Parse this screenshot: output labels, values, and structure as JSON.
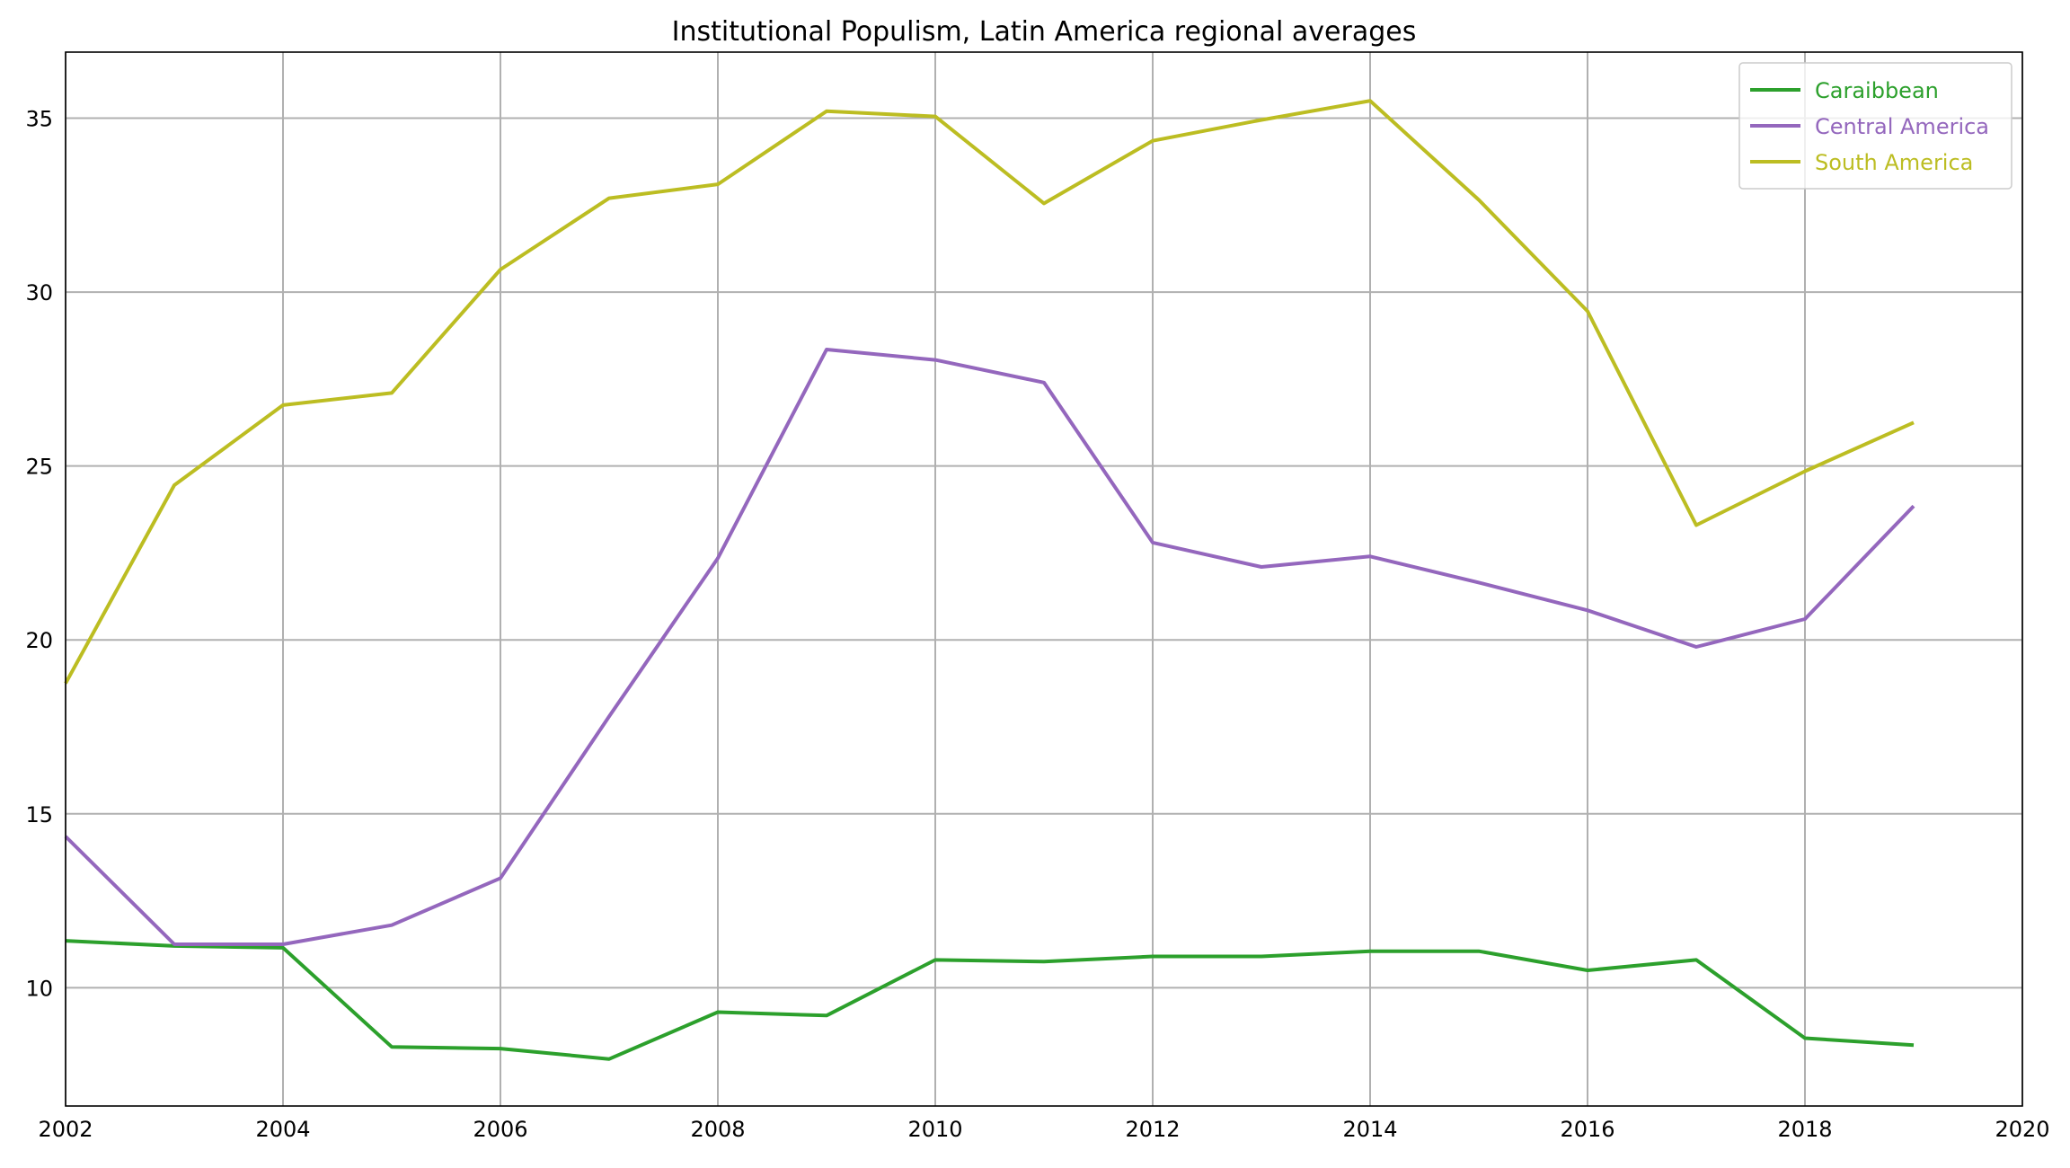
{
  "chart_data": {
    "type": "line",
    "title": "Institutional Populism, Latin America regional averages",
    "xlabel": "",
    "ylabel": "",
    "xlim": [
      2002,
      2020
    ],
    "ylim": [
      6.6,
      36.9
    ],
    "x_ticks": [
      2002,
      2004,
      2006,
      2008,
      2010,
      2012,
      2014,
      2016,
      2018,
      2020
    ],
    "y_ticks": [
      10,
      15,
      20,
      25,
      30,
      35
    ],
    "grid": true,
    "legend_position": "top-right",
    "x": [
      2002,
      2003,
      2004,
      2005,
      2006,
      2007,
      2008,
      2009,
      2010,
      2011,
      2012,
      2013,
      2014,
      2015,
      2016,
      2017,
      2018,
      2019
    ],
    "series": [
      {
        "name": "Caraibbean",
        "color": "#2ca02c",
        "values": [
          11.35,
          11.2,
          11.15,
          8.3,
          8.25,
          7.95,
          9.3,
          9.2,
          10.8,
          10.75,
          10.9,
          10.9,
          11.05,
          11.05,
          10.5,
          10.8,
          8.55,
          8.35
        ]
      },
      {
        "name": "Central America",
        "color": "#9467bd",
        "values": [
          14.35,
          11.25,
          11.25,
          11.8,
          13.15,
          17.8,
          22.35,
          28.35,
          28.05,
          27.4,
          22.8,
          22.1,
          22.4,
          21.65,
          20.85,
          19.8,
          20.6,
          23.85
        ]
      },
      {
        "name": "South America",
        "color": "#bcbd22",
        "values": [
          18.75,
          24.45,
          26.75,
          27.1,
          30.65,
          32.7,
          33.1,
          35.2,
          35.05,
          32.55,
          34.35,
          34.95,
          35.5,
          32.65,
          29.45,
          23.3,
          24.85,
          26.25
        ]
      }
    ]
  }
}
